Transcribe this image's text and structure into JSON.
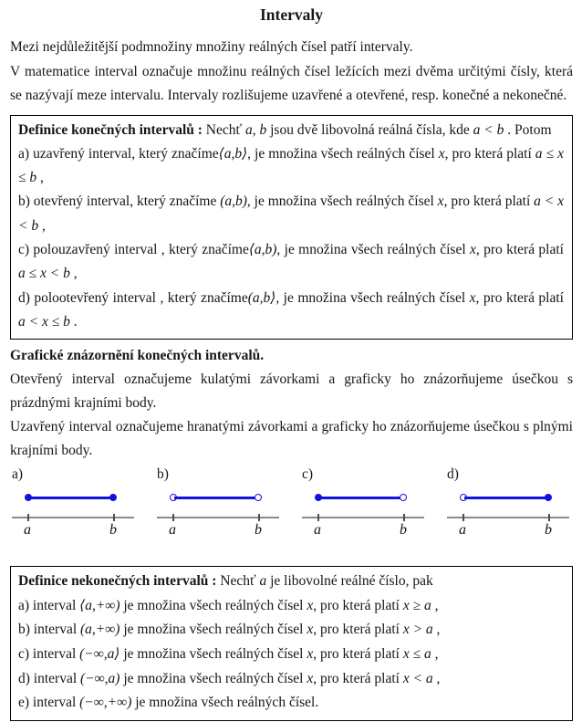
{
  "page": {
    "title": "Intervaly"
  },
  "intro": {
    "p1": "Mezi nejdůležitější podmnožiny množiny reálných čísel patří intervaly.",
    "p2": "V matematice interval označuje množinu reálných čísel ležících mezi dvěma určitými čísly, která se nazývají meze intervalu. Intervaly rozlišujeme uzavřené a otevřené, resp. konečné a nekonečné."
  },
  "finite_box": {
    "p1": [
      {
        "t": "Definice konečných intervalů :",
        "s": "b"
      },
      {
        "t": " Nechť "
      },
      {
        "t": "a",
        "s": "i"
      },
      {
        "t": ", "
      },
      {
        "t": "b",
        "s": "i"
      },
      {
        "t": " jsou dvě libovolná reálná čísla, kde "
      },
      {
        "t": "a < b",
        "s": "i"
      },
      {
        "t": " . Potom"
      }
    ],
    "p2": [
      {
        "t": "a) uzavřený interval, který značíme"
      },
      {
        "t": "⟨a,b⟩",
        "s": "i"
      },
      {
        "t": ", je množina všech reálných čísel "
      },
      {
        "t": "x",
        "s": "i"
      },
      {
        "t": ", pro která platí "
      },
      {
        "t": "a ≤ x ≤ b",
        "s": "i"
      },
      {
        "t": " ,"
      }
    ],
    "p3": [
      {
        "t": "b) otevřený interval, který značíme "
      },
      {
        "t": "(a,b)",
        "s": "i"
      },
      {
        "t": ", je množina všech reálných čísel "
      },
      {
        "t": "x",
        "s": "i"
      },
      {
        "t": ", pro která platí "
      },
      {
        "t": "a < x < b",
        "s": "i"
      },
      {
        "t": " ,"
      }
    ],
    "p4": [
      {
        "t": "c) polouzavřený interval , který značíme"
      },
      {
        "t": "⟨a,b)",
        "s": "i"
      },
      {
        "t": ", je množina všech reálných čísel "
      },
      {
        "t": "x",
        "s": "i"
      },
      {
        "t": ", pro která platí "
      },
      {
        "t": "a ≤ x < b",
        "s": "i"
      },
      {
        "t": " ,"
      }
    ],
    "p5": [
      {
        "t": "d) polootevřený interval , který značíme"
      },
      {
        "t": "(a,b⟩",
        "s": "i"
      },
      {
        "t": ", je množina všech reálných čísel "
      },
      {
        "t": "x",
        "s": "i"
      },
      {
        "t": ", pro která platí "
      },
      {
        "t": "a < x ≤ b",
        "s": "i"
      },
      {
        "t": " ."
      }
    ]
  },
  "graphic_section": {
    "heading": "Grafické znázornění konečných intervalů.",
    "p1": "Otevřený interval označujeme kulatými závorkami a graficky ho znázorňujeme úsečkou s prázdnými krajními body.",
    "p2": "Uzavřený interval označujeme hranatými závorkami a graficky ho znázorňujeme úsečkou s plnými krajními body."
  },
  "diagrams": [
    {
      "label": "a)",
      "left_endpoint": "filled",
      "right_endpoint": "filled",
      "left_label": "a",
      "right_label": "b"
    },
    {
      "label": "b)",
      "left_endpoint": "open",
      "right_endpoint": "open",
      "left_label": "a",
      "right_label": "b"
    },
    {
      "label": "c)",
      "left_endpoint": "filled",
      "right_endpoint": "open",
      "left_label": "a",
      "right_label": "b"
    },
    {
      "label": "d)",
      "left_endpoint": "open",
      "right_endpoint": "filled",
      "left_label": "a",
      "right_label": "b"
    }
  ],
  "infinite_box": {
    "p1": [
      {
        "t": "Definice nekonečných intervalů :",
        "s": "b"
      },
      {
        "t": " Nechť "
      },
      {
        "t": "a",
        "s": "i"
      },
      {
        "t": " je libovolné reálné číslo, pak"
      }
    ],
    "p2": [
      {
        "t": "a) interval "
      },
      {
        "t": "⟨a,+∞)",
        "s": "i"
      },
      {
        "t": " je množina všech reálných čísel "
      },
      {
        "t": "x",
        "s": "i"
      },
      {
        "t": ", pro která platí "
      },
      {
        "t": "x ≥ a",
        "s": "i"
      },
      {
        "t": " ,"
      }
    ],
    "p3": [
      {
        "t": "b) interval "
      },
      {
        "t": "(a,+∞)",
        "s": "i"
      },
      {
        "t": " je množina všech reálných čísel "
      },
      {
        "t": "x",
        "s": "i"
      },
      {
        "t": ", pro která platí "
      },
      {
        "t": "x > a",
        "s": "i"
      },
      {
        "t": " ,"
      }
    ],
    "p4": [
      {
        "t": "c) interval "
      },
      {
        "t": "(−∞,a⟩",
        "s": "i"
      },
      {
        "t": " je množina všech reálných čísel "
      },
      {
        "t": "x",
        "s": "i"
      },
      {
        "t": ", pro která platí "
      },
      {
        "t": "x ≤ a",
        "s": "i"
      },
      {
        "t": " ,"
      }
    ],
    "p5": [
      {
        "t": "d) interval "
      },
      {
        "t": "(−∞,a)",
        "s": "i"
      },
      {
        "t": " je množina všech reálných čísel "
      },
      {
        "t": "x",
        "s": "i"
      },
      {
        "t": ", pro která platí "
      },
      {
        "t": "x < a",
        "s": "i"
      },
      {
        "t": " ,"
      }
    ],
    "p6": [
      {
        "t": "e) interval "
      },
      {
        "t": "(−∞,+∞)",
        "s": "i"
      },
      {
        "t": " je množina všech reálných čísel."
      }
    ]
  },
  "colors": {
    "interval_blue": "#1212df",
    "axis_gray": "#8a8a8a",
    "box_border": "#000000"
  }
}
